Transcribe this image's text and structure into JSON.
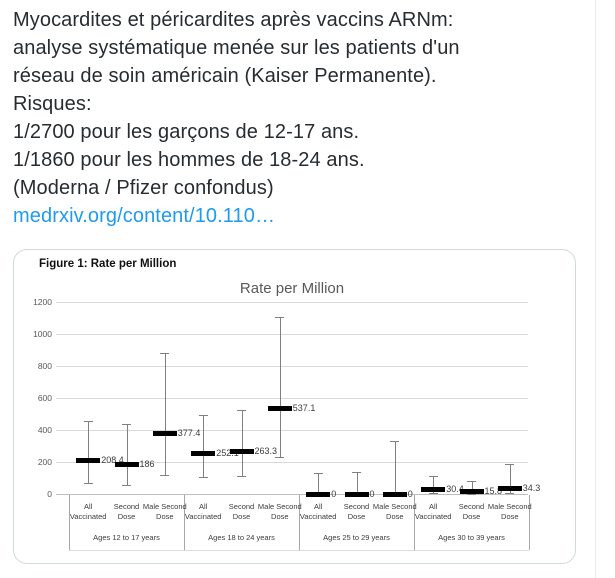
{
  "tweet": {
    "lines": [
      "Myocardites et péricardites après vaccins ARNm:",
      "analyse systématique menée sur les patients d'un",
      "réseau de soin américain (Kaiser Permanente).",
      "Risques:",
      "1/2700 pour les garçons de 12-17 ans.",
      "1/1860 pour les hommes de 18-24 ans.",
      "(Moderna / Pfizer confondus)"
    ],
    "link_text": "medrxiv.org/content/10.110…"
  },
  "colors": {
    "link_blue": "#1d9bf0",
    "tweet_text": "#272c30",
    "card_border": "#cfd9de",
    "gridline": "#d9d9d9",
    "marker": "#000000",
    "whisker": "#808080",
    "axis_text": "#595959"
  },
  "chart_data": {
    "type": "scatter",
    "style": "point-estimate-with-95ci-whiskers",
    "figure_label": "Figure 1: Rate per Million",
    "title": "Rate per Million",
    "ylabel": "",
    "xlabel": "",
    "ylim": [
      0,
      1200
    ],
    "yticks": [
      0,
      200,
      400,
      600,
      800,
      1000,
      1200
    ],
    "grid": true,
    "legend": false,
    "groups": [
      {
        "label": "Ages 12 to 17 years",
        "points": [
          {
            "category": "All Vaccinated",
            "value": 208.4,
            "label": "208.4",
            "whisker_low": 70,
            "whisker_high": 455
          },
          {
            "category": "Second Dose",
            "value": 186,
            "label": "186",
            "whisker_low": 55,
            "whisker_high": 435
          },
          {
            "category": "Male Second Dose",
            "value": 377.4,
            "label": "377.4",
            "whisker_low": 120,
            "whisker_high": 880
          }
        ]
      },
      {
        "label": "Ages 18 to 24 years",
        "points": [
          {
            "category": "All Vaccinated",
            "value": 252.1,
            "label": "252.1",
            "whisker_low": 105,
            "whisker_high": 495
          },
          {
            "category": "Second Dose",
            "value": 263.3,
            "label": "263.3",
            "whisker_low": 110,
            "whisker_high": 525
          },
          {
            "category": "Male Second Dose",
            "value": 537.1,
            "label": "537.1",
            "whisker_low": 230,
            "whisker_high": 1105
          }
        ]
      },
      {
        "label": "Ages 25 to 29 years",
        "points": [
          {
            "category": "All Vaccinated",
            "value": 0,
            "label": "0",
            "whisker_low": 0,
            "whisker_high": 130
          },
          {
            "category": "Second Dose",
            "value": 0,
            "label": "0",
            "whisker_low": 0,
            "whisker_high": 138
          },
          {
            "category": "Male Second Dose",
            "value": 0,
            "label": "0",
            "whisker_low": 0,
            "whisker_high": 330
          }
        ]
      },
      {
        "label": "Ages 30 to 39 years",
        "points": [
          {
            "category": "All Vaccinated",
            "value": 30.4,
            "label": "30.4",
            "whisker_low": 5,
            "whisker_high": 110
          },
          {
            "category": "Second Dose",
            "value": 15.8,
            "label": "15.8",
            "whisker_low": 3,
            "whisker_high": 83
          },
          {
            "category": "Male Second Dose",
            "value": 34.3,
            "label": "34.3",
            "whisker_low": 5,
            "whisker_high": 187
          }
        ]
      }
    ]
  }
}
